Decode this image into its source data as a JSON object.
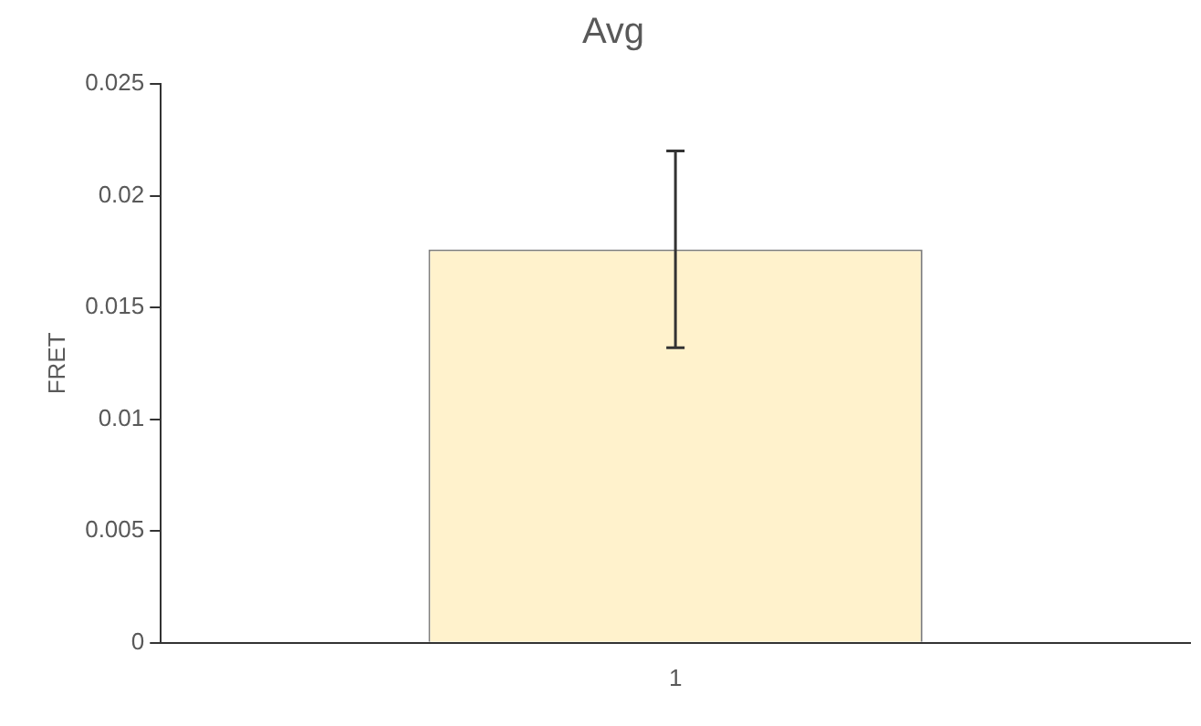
{
  "chart_data": {
    "type": "bar",
    "title": "Avg",
    "ylabel": "FRET",
    "categories": [
      "1"
    ],
    "values": [
      0.0176
    ],
    "errors": [
      0.0044
    ],
    "color": "#fff2cc",
    "ylim": [
      0,
      0.025
    ],
    "yticks": [
      0,
      0.005,
      0.01,
      0.015,
      0.02,
      0.025
    ],
    "grid": false,
    "legend": false
  }
}
